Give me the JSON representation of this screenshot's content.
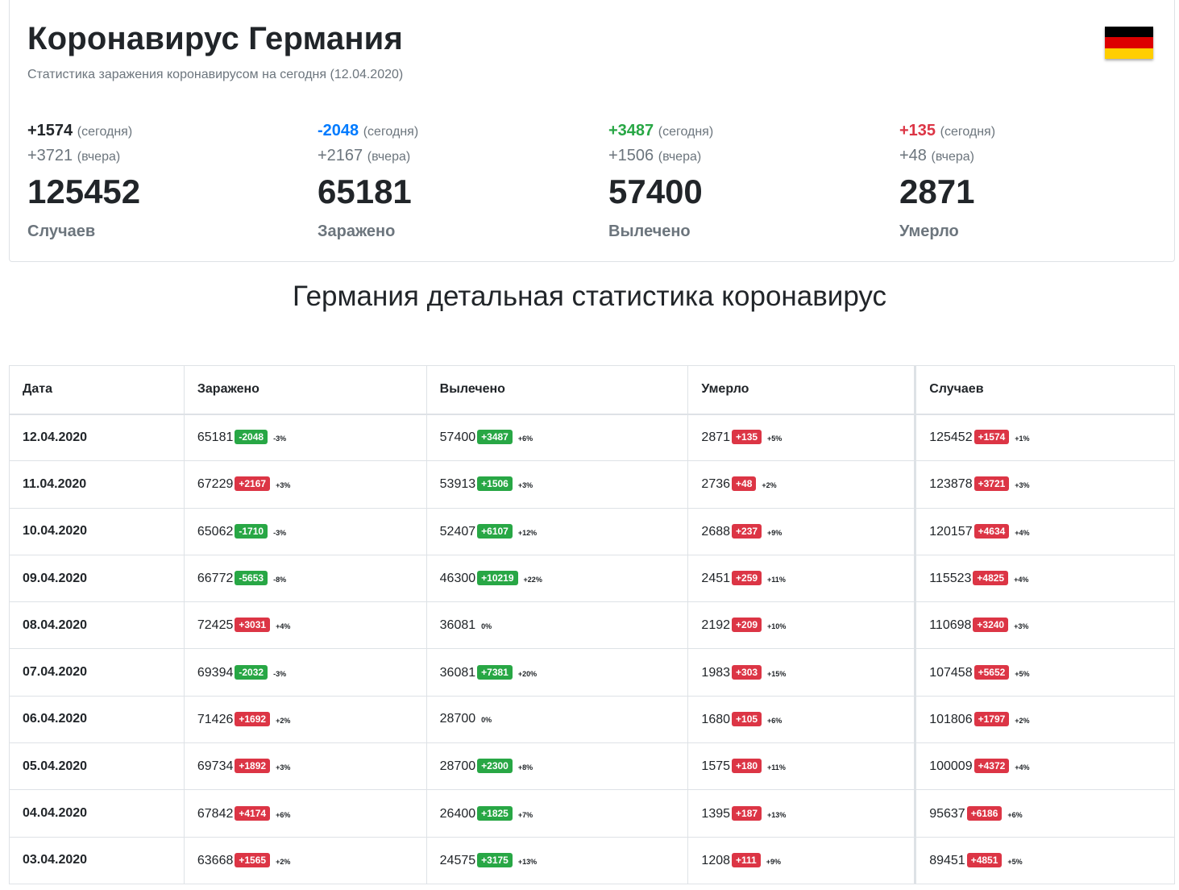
{
  "header": {
    "title": "Коронавирус Германия",
    "subtitle": "Статистика заражения коронавирусом на сегодня (12.04.2020)",
    "flag_colors": [
      "#000000",
      "#dd0000",
      "#ffce00"
    ]
  },
  "today_label": "(сегодня)",
  "yesterday_label": "(вчера)",
  "stats": [
    {
      "today": "+1574",
      "yesterday": "+3721",
      "total": "125452",
      "label": "Случаев",
      "color": "#212529"
    },
    {
      "today": "-2048",
      "yesterday": "+2167",
      "total": "65181",
      "label": "Заражено",
      "color": "#007bff"
    },
    {
      "today": "+3487",
      "yesterday": "+1506",
      "total": "57400",
      "label": "Вылечено",
      "color": "#28a745"
    },
    {
      "today": "+135",
      "yesterday": "+48",
      "total": "2871",
      "label": "Умерло",
      "color": "#dc3545"
    }
  ],
  "section_title": "Германия детальная статистика коронавирус",
  "table": {
    "headers": [
      "Дата",
      "Заражено",
      "Вылечено",
      "Умерло",
      "Случаев"
    ],
    "rows": [
      {
        "date": "12.04.2020",
        "infected": [
          "65181",
          "-2048",
          "-3%"
        ],
        "recovered": [
          "57400",
          "+3487",
          "+6%"
        ],
        "died": [
          "2871",
          "+135",
          "+5%"
        ],
        "cases": [
          "125452",
          "+1574",
          "+1%"
        ]
      },
      {
        "date": "11.04.2020",
        "infected": [
          "67229",
          "+2167",
          "+3%"
        ],
        "recovered": [
          "53913",
          "+1506",
          "+3%"
        ],
        "died": [
          "2736",
          "+48",
          "+2%"
        ],
        "cases": [
          "123878",
          "+3721",
          "+3%"
        ]
      },
      {
        "date": "10.04.2020",
        "infected": [
          "65062",
          "-1710",
          "-3%"
        ],
        "recovered": [
          "52407",
          "+6107",
          "+12%"
        ],
        "died": [
          "2688",
          "+237",
          "+9%"
        ],
        "cases": [
          "120157",
          "+4634",
          "+4%"
        ]
      },
      {
        "date": "09.04.2020",
        "infected": [
          "66772",
          "-5653",
          "-8%"
        ],
        "recovered": [
          "46300",
          "+10219",
          "+22%"
        ],
        "died": [
          "2451",
          "+259",
          "+11%"
        ],
        "cases": [
          "115523",
          "+4825",
          "+4%"
        ]
      },
      {
        "date": "08.04.2020",
        "infected": [
          "72425",
          "+3031",
          "+4%"
        ],
        "recovered": [
          "36081",
          "",
          "0%"
        ],
        "died": [
          "2192",
          "+209",
          "+10%"
        ],
        "cases": [
          "110698",
          "+3240",
          "+3%"
        ]
      },
      {
        "date": "07.04.2020",
        "infected": [
          "69394",
          "-2032",
          "-3%"
        ],
        "recovered": [
          "36081",
          "+7381",
          "+20%"
        ],
        "died": [
          "1983",
          "+303",
          "+15%"
        ],
        "cases": [
          "107458",
          "+5652",
          "+5%"
        ]
      },
      {
        "date": "06.04.2020",
        "infected": [
          "71426",
          "+1692",
          "+2%"
        ],
        "recovered": [
          "28700",
          "",
          "0%"
        ],
        "died": [
          "1680",
          "+105",
          "+6%"
        ],
        "cases": [
          "101806",
          "+1797",
          "+2%"
        ]
      },
      {
        "date": "05.04.2020",
        "infected": [
          "69734",
          "+1892",
          "+3%"
        ],
        "recovered": [
          "28700",
          "+2300",
          "+8%"
        ],
        "died": [
          "1575",
          "+180",
          "+11%"
        ],
        "cases": [
          "100009",
          "+4372",
          "+4%"
        ]
      },
      {
        "date": "04.04.2020",
        "infected": [
          "67842",
          "+4174",
          "+6%"
        ],
        "recovered": [
          "26400",
          "+1825",
          "+7%"
        ],
        "died": [
          "1395",
          "+187",
          "+13%"
        ],
        "cases": [
          "95637",
          "+6186",
          "+6%"
        ]
      },
      {
        "date": "03.04.2020",
        "infected": [
          "63668",
          "+1565",
          "+2%"
        ],
        "recovered": [
          "24575",
          "+3175",
          "+13%"
        ],
        "died": [
          "1208",
          "+111",
          "+9%"
        ],
        "cases": [
          "89451",
          "+4851",
          "+5%"
        ]
      }
    ]
  }
}
